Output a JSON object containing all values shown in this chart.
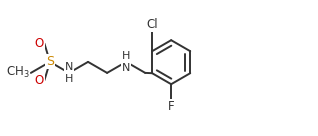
{
  "bg_color": "#ffffff",
  "bond_color": "#333333",
  "atom_colors": {
    "C": "#333333",
    "N": "#333333",
    "O": "#cc0000",
    "S": "#cc8800",
    "H": "#333333",
    "Cl": "#333333",
    "F": "#333333"
  },
  "line_width": 1.4,
  "font_size": 8.5,
  "figsize": [
    3.18,
    1.36
  ],
  "dpi": 100,
  "xlim": [
    0,
    10.2
  ],
  "ylim": [
    0,
    4.2
  ]
}
